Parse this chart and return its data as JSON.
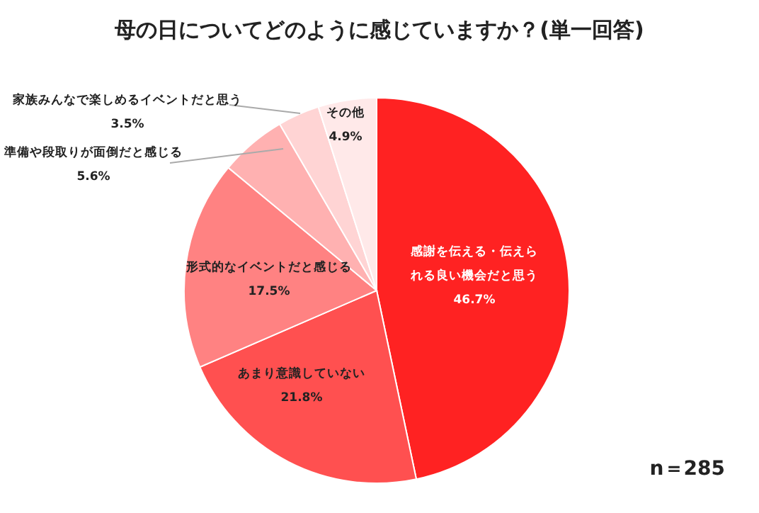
{
  "chart_data": {
    "type": "pie",
    "title": "母の日についてどのように感じていますか？(単一回答)",
    "categories": [
      "感謝を伝える・伝えられる良い機会だと思う",
      "あまり意識していない",
      "形式的なイベントだと感じる",
      "準備や段取りが面倒だと感じる",
      "家族みんなで楽しめるイベントだと思う",
      "その他"
    ],
    "values": [
      46.7,
      21.8,
      17.5,
      5.6,
      3.5,
      4.9
    ],
    "colors": [
      "#ff2222",
      "#ff5050",
      "#ff8282",
      "#ffb1b1",
      "#ffd4d4",
      "#ffe9e9"
    ],
    "value_labels": [
      "46.7%",
      "21.8%",
      "17.5%",
      "5.6%",
      "3.5%",
      "4.9%"
    ],
    "annotations": [
      "n＝285"
    ]
  }
}
